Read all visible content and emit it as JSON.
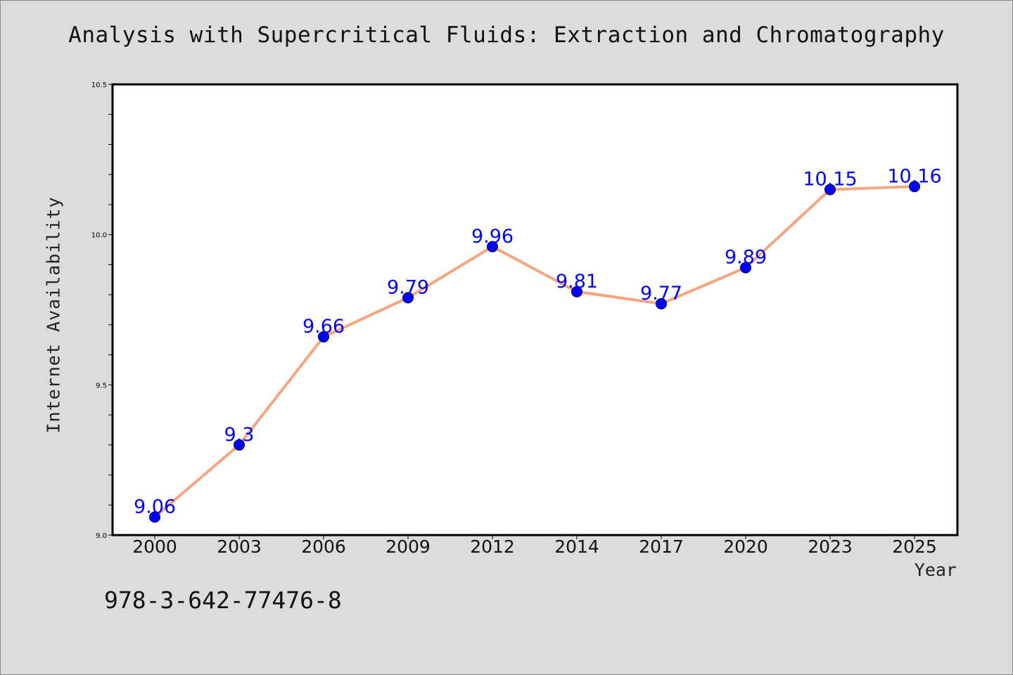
{
  "chart_data": {
    "type": "line",
    "title": "Analysis with Supercritical Fluids: Extraction and Chromatography",
    "xlabel": "Year",
    "ylabel": "Internet Availability",
    "categories": [
      "2000",
      "2003",
      "2006",
      "2009",
      "2012",
      "2014",
      "2017",
      "2020",
      "2023",
      "2025"
    ],
    "series": [
      {
        "values": [
          9.06,
          9.3,
          9.66,
          9.79,
          9.96,
          9.81,
          9.77,
          9.89,
          10.15,
          10.16
        ],
        "labels": [
          "9.06",
          "9.3",
          "9.66",
          "9.79",
          "9.96",
          "9.81",
          "9.77",
          "9.89",
          "10.15",
          "10.16"
        ]
      }
    ],
    "ylim": [
      9.0,
      10.5
    ],
    "yticks_major": [
      "9.0",
      "9.5",
      "10.0",
      "10.5"
    ],
    "grid": false,
    "colors": {
      "line": "#f4a582",
      "marker": "#0000ff",
      "data_label": "#0000ff"
    }
  },
  "annotation_text": "978-3-642-77476-8"
}
